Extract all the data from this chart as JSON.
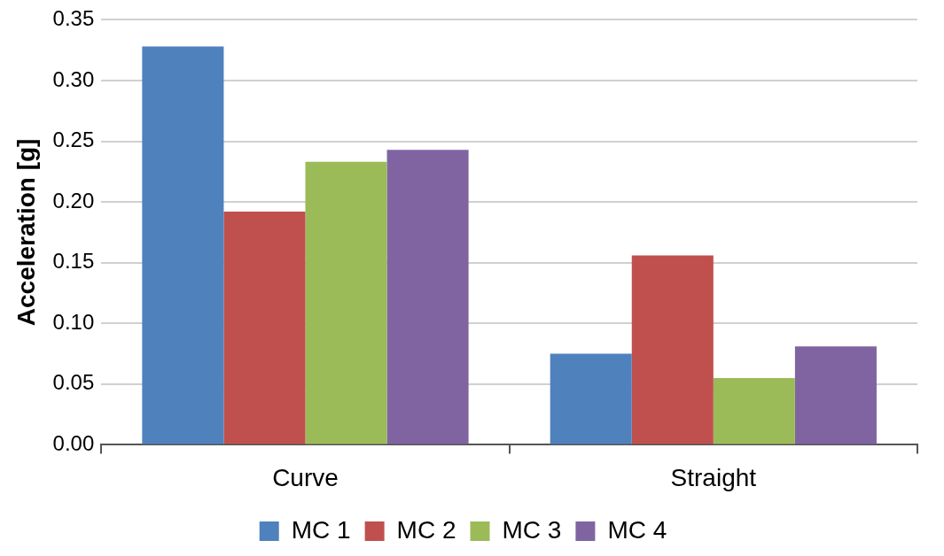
{
  "chart_data": {
    "type": "bar",
    "ylabel": "Acceleration [g]",
    "categories": [
      "Curve",
      "Straight"
    ],
    "series": [
      {
        "name": "MC 1",
        "color": "#4f81bd",
        "values": [
          0.328,
          0.075
        ]
      },
      {
        "name": "MC 2",
        "color": "#c0504d",
        "values": [
          0.192,
          0.156
        ]
      },
      {
        "name": "MC 3",
        "color": "#9bbb59",
        "values": [
          0.233,
          0.055
        ]
      },
      {
        "name": "MC 4",
        "color": "#8064a2",
        "values": [
          0.243,
          0.081
        ]
      }
    ],
    "ylim": [
      0,
      0.35
    ],
    "yticks": [
      {
        "value": 0,
        "label": "0.00"
      },
      {
        "value": 0.05,
        "label": "0.05"
      },
      {
        "value": 0.1,
        "label": "0.10"
      },
      {
        "value": 0.15,
        "label": "0.15"
      },
      {
        "value": 0.2,
        "label": "0.20"
      },
      {
        "value": 0.25,
        "label": "0.25"
      },
      {
        "value": 0.3,
        "label": "0.30"
      },
      {
        "value": 0.35,
        "label": "0.35"
      }
    ],
    "grid": "y",
    "legend": "bottom"
  }
}
